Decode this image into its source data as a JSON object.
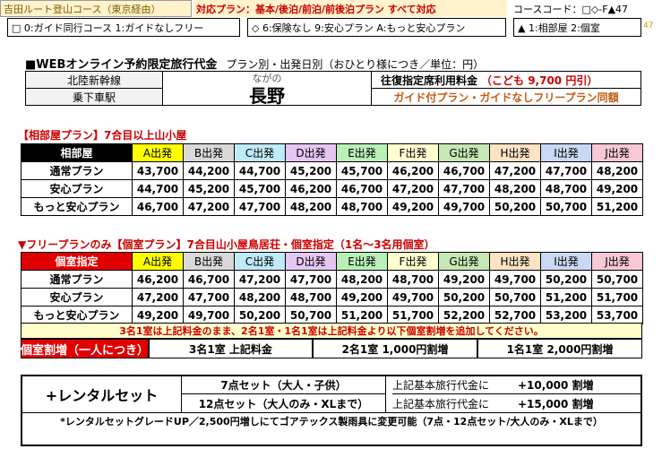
{
  "top": {
    "route": "吉田ルート登山コース（東京経由）",
    "plans": "対応プラン：基本/後泊/前泊/前後泊プラン すべて対応",
    "course_code": "コースコード：□◇-F▲47",
    "page_no": "47"
  },
  "legend": {
    "guide": "□ 0:ガイド同行コース 1:ガイドなしフリー",
    "insurance": "◇ 6:保険なし 9:安心プラン A:もっと安心プラン",
    "room": "▲ 1:相部屋 2:個室"
  },
  "title": {
    "main": "■WEBオンライン予約限定旅行代金",
    "sub": "プラン別・出発日別（おひとり様につき／単位：円）"
  },
  "destination": {
    "line": "北陸新幹線",
    "station_label": "乗下車駅",
    "reading": "ながの",
    "name": "長野",
    "fare_label": "往復指定席利用料金",
    "child_fare": "（こども 9,700 円引）",
    "same_price": "ガイド付プラン・ガイドなしフリープラン同額"
  },
  "shared": {
    "title": "【相部屋プラン】7合目以上山小屋",
    "header": "相部屋",
    "departures": [
      "A出発",
      "B出発",
      "C出発",
      "D出発",
      "E出発",
      "F出発",
      "G出発",
      "H出発",
      "I出発",
      "J出発"
    ],
    "rows": [
      {
        "label": "通常プラン",
        "prices": [
          "43,700",
          "44,200",
          "44,700",
          "45,200",
          "45,700",
          "46,200",
          "46,700",
          "47,200",
          "47,700",
          "48,200"
        ]
      },
      {
        "label": "安心プラン",
        "prices": [
          "44,700",
          "45,200",
          "45,700",
          "46,200",
          "46,700",
          "47,200",
          "47,700",
          "48,200",
          "48,700",
          "49,200"
        ]
      },
      {
        "label": "もっと安心プラン",
        "prices": [
          "46,700",
          "47,200",
          "47,700",
          "48,200",
          "48,700",
          "49,200",
          "49,700",
          "50,200",
          "50,700",
          "51,200"
        ]
      }
    ]
  },
  "private": {
    "title": "▼フリープランのみ【個室プラン】7合目山小屋鳥居荘・個室指定（1名～3名用個室）",
    "header": "個室指定",
    "departures": [
      "A出発",
      "B出発",
      "C出発",
      "D出発",
      "E出発",
      "F出発",
      "G出発",
      "H出発",
      "I出発",
      "J出発"
    ],
    "rows": [
      {
        "label": "通常プラン",
        "prices": [
          "46,200",
          "46,700",
          "47,200",
          "47,700",
          "48,200",
          "48,700",
          "49,200",
          "49,700",
          "50,200",
          "50,700"
        ]
      },
      {
        "label": "安心プラン",
        "prices": [
          "47,200",
          "47,700",
          "48,200",
          "48,700",
          "49,200",
          "49,700",
          "50,200",
          "50,700",
          "51,200",
          "51,700"
        ]
      },
      {
        "label": "もっと安心プラン",
        "prices": [
          "49,200",
          "49,700",
          "50,200",
          "50,700",
          "51,200",
          "51,700",
          "52,200",
          "52,700",
          "53,200",
          "53,700"
        ]
      }
    ],
    "notice": "3名1室は上記料金のまま、2名1室・1名1室は上記料金より以下個室割増を追加してください。",
    "surcharge_label": "個室割増（一人につき）",
    "surcharges": [
      "3名1室 上記料金",
      "2名1室 1,000円割増",
      "1名1室 2,000円割増"
    ]
  },
  "rental": {
    "label": "+レンタルセット",
    "rows": [
      {
        "set": "7点セット（大人・子供）",
        "desc": "上記基本旅行代金に",
        "amount": "+10,000 割増"
      },
      {
        "set": "12点セット（大人のみ・XLまで）",
        "desc": "上記基本旅行代金に",
        "amount": "+15,000 割増"
      }
    ],
    "note": "*レンタルセットグレードUP／2,500円増しにてゴアテックス製雨具に変更可能（7点・12点セット/大人のみ・XLまで）"
  },
  "colors": {
    "accent_red": "#cc0000",
    "header_red": "#e00000"
  }
}
